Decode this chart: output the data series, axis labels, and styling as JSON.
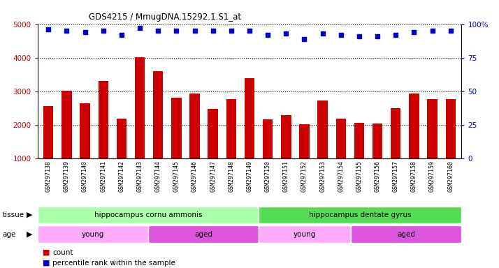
{
  "title": "GDS4215 / MmugDNA.15292.1.S1_at",
  "samples": [
    "GSM297138",
    "GSM297139",
    "GSM297140",
    "GSM297141",
    "GSM297142",
    "GSM297143",
    "GSM297144",
    "GSM297145",
    "GSM297146",
    "GSM297147",
    "GSM297148",
    "GSM297149",
    "GSM297150",
    "GSM297151",
    "GSM297152",
    "GSM297153",
    "GSM297154",
    "GSM297155",
    "GSM297156",
    "GSM297157",
    "GSM297158",
    "GSM297159",
    "GSM297160"
  ],
  "counts": [
    2560,
    3010,
    2650,
    3310,
    2175,
    4020,
    3600,
    2810,
    2940,
    2480,
    2760,
    3380,
    2160,
    2290,
    2020,
    2730,
    2190,
    2050,
    2030,
    2490,
    2930,
    2760,
    2770
  ],
  "percentiles": [
    96,
    95,
    94,
    95,
    92,
    97,
    95,
    95,
    95,
    95,
    95,
    95,
    92,
    93,
    89,
    93,
    92,
    91,
    91,
    92,
    94,
    95,
    95
  ],
  "bar_color": "#cc0000",
  "dot_color": "#0000cc",
  "ylim_left": [
    1000,
    5000
  ],
  "ylim_right": [
    0,
    100
  ],
  "yticks_left": [
    1000,
    2000,
    3000,
    4000,
    5000
  ],
  "yticks_right": [
    0,
    25,
    50,
    75,
    100
  ],
  "yticklabels_right": [
    "0",
    "25",
    "50",
    "75",
    "100%"
  ],
  "grid_values": [
    2000,
    3000,
    4000
  ],
  "tissue_groups": [
    {
      "label": "hippocampus cornu ammonis",
      "start": 0,
      "end": 12,
      "color": "#aaffaa"
    },
    {
      "label": "hippocampus dentate gyrus",
      "start": 12,
      "end": 23,
      "color": "#55dd55"
    }
  ],
  "age_groups": [
    {
      "label": "young",
      "start": 0,
      "end": 6,
      "color": "#ffaaff"
    },
    {
      "label": "aged",
      "start": 6,
      "end": 12,
      "color": "#dd55dd"
    },
    {
      "label": "young",
      "start": 12,
      "end": 17,
      "color": "#ffaaff"
    },
    {
      "label": "aged",
      "start": 17,
      "end": 23,
      "color": "#dd55dd"
    }
  ],
  "bar_bottom": 1000,
  "xtick_bg": "#d8d8d8",
  "left_tick_color": "#cc0000",
  "right_tick_color": "#0000cc",
  "plot_bg": "#ffffff"
}
